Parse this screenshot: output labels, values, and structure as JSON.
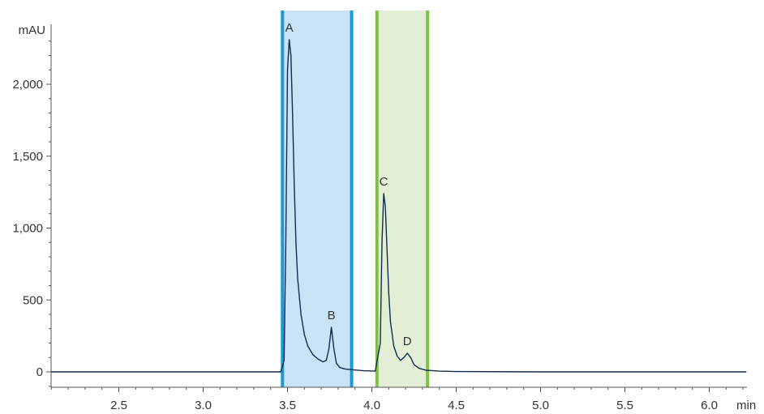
{
  "chart_data": {
    "type": "line",
    "x_unit": "min",
    "y_unit": "mAU",
    "xlim": [
      2.1,
      6.22
    ],
    "ylim": [
      -100,
      2450
    ],
    "x_ticks": [
      2.5,
      3.0,
      3.5,
      4.0,
      4.5,
      5.0,
      5.5,
      6.0
    ],
    "x_tick_labels": [
      "2.5",
      "3.0",
      "3.5",
      "4.0",
      "4.5",
      "5.0",
      "5.5",
      "6.0"
    ],
    "y_ticks": [
      0,
      500,
      1000,
      1500,
      2000
    ],
    "y_tick_labels": [
      "0",
      "500",
      "1,000",
      "1,500",
      "2,000"
    ],
    "regions": [
      {
        "start": 3.47,
        "end": 3.88,
        "fill": "#c8e3f5",
        "edge": "#1a9ad6"
      },
      {
        "start": 4.03,
        "end": 4.33,
        "fill": "#e3eed6",
        "edge": "#7dc242"
      }
    ],
    "peaks": [
      {
        "label": "A",
        "x": 3.51,
        "y": 2310
      },
      {
        "label": "B",
        "x": 3.76,
        "y": 310
      },
      {
        "label": "C",
        "x": 4.07,
        "y": 1240
      },
      {
        "label": "D",
        "x": 4.21,
        "y": 130
      }
    ],
    "series": [
      {
        "color": "#0f2d4d",
        "x": [
          2.1,
          2.5,
          2.8,
          3.0,
          3.3,
          3.46,
          3.48,
          3.49,
          3.5,
          3.51,
          3.52,
          3.53,
          3.54,
          3.55,
          3.56,
          3.58,
          3.6,
          3.62,
          3.65,
          3.68,
          3.71,
          3.73,
          3.745,
          3.76,
          3.775,
          3.79,
          3.81,
          3.84,
          3.88,
          3.95,
          4.02,
          4.05,
          4.06,
          4.07,
          4.08,
          4.09,
          4.1,
          4.11,
          4.13,
          4.15,
          4.17,
          4.19,
          4.21,
          4.23,
          4.25,
          4.28,
          4.32,
          4.4,
          4.5,
          5.0,
          5.5,
          6.0,
          6.22
        ],
        "y": [
          0,
          0,
          0,
          0,
          0,
          0,
          80,
          900,
          2100,
          2310,
          2200,
          1800,
          1300,
          900,
          650,
          400,
          260,
          180,
          120,
          90,
          70,
          80,
          160,
          310,
          160,
          60,
          30,
          20,
          15,
          8,
          5,
          200,
          900,
          1240,
          1150,
          850,
          550,
          350,
          180,
          110,
          80,
          100,
          130,
          100,
          50,
          25,
          12,
          5,
          2,
          0,
          0,
          0,
          0
        ]
      }
    ]
  }
}
